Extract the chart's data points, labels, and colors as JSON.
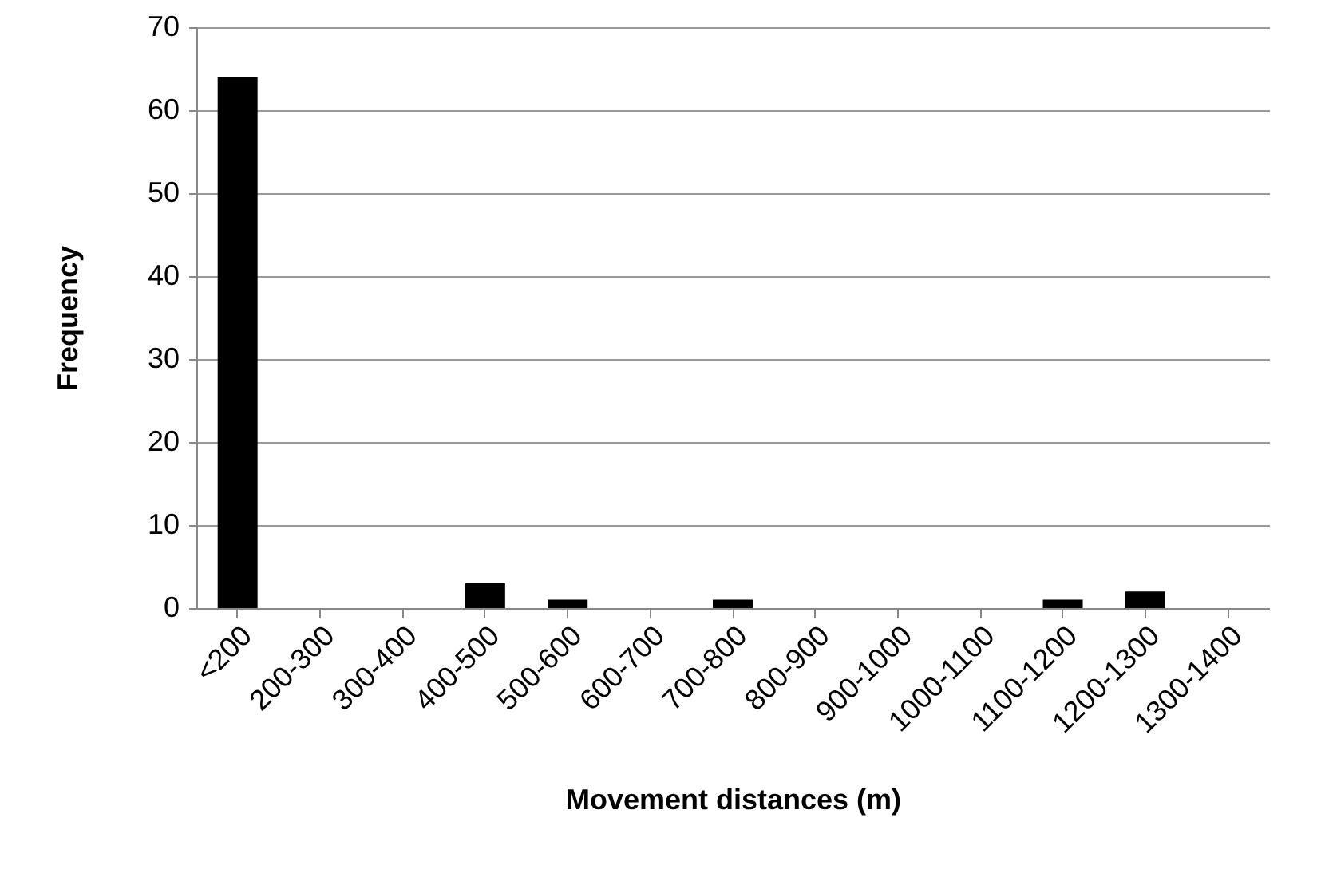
{
  "chart_data": {
    "type": "bar",
    "xlabel": "Movement distances (m)",
    "ylabel": "Frequency",
    "categories": [
      "<200",
      "200-300",
      "300-400",
      "400-500",
      "500-600",
      "600-700",
      "700-800",
      "800-900",
      "900-1000",
      "1000-1100",
      "1100-1200",
      "1200-1300",
      "1300-1400"
    ],
    "values": [
      64,
      0,
      0,
      3,
      1,
      0,
      1,
      0,
      0,
      0,
      1,
      2,
      0
    ],
    "color": "#000000",
    "ylim": [
      0,
      70
    ],
    "yticks": [
      0,
      10,
      20,
      30,
      40,
      50,
      60,
      70
    ],
    "grid": "y"
  }
}
